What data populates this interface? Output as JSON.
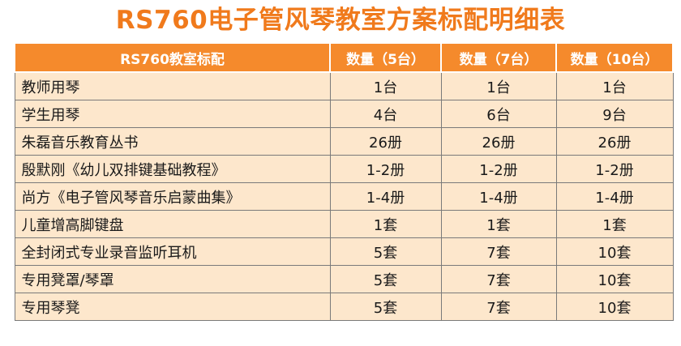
{
  "title": "RS760电子管风琴教室方案标配明细表",
  "colors": {
    "title": "#f07a1c",
    "header_bg": "#f58a2c",
    "row_bg": "#fde7cc",
    "border": "#7a7a7a"
  },
  "table": {
    "headers": [
      "RS760教室标配",
      "数量（5台）",
      "数量（7台）",
      "数量（10台）"
    ],
    "rows": [
      [
        "教师用琴",
        "1台",
        "1台",
        "1台"
      ],
      [
        "学生用琴",
        "4台",
        "6台",
        "9台"
      ],
      [
        "朱磊音乐教育丛书",
        "26册",
        "26册",
        "26册"
      ],
      [
        "殷默刚《幼儿双排键基础教程》",
        "1-2册",
        "1-2册",
        "1-2册"
      ],
      [
        "尚方《电子管风琴音乐启蒙曲集》",
        "1-4册",
        "1-4册",
        "1-4册"
      ],
      [
        "儿童增高脚键盘",
        "1套",
        "1套",
        "1套"
      ],
      [
        "全封闭式专业录音监听耳机",
        "5套",
        "7套",
        "10套"
      ],
      [
        "专用凳罩/琴罩",
        "5套",
        "7套",
        "10套"
      ],
      [
        "专用琴凳",
        "5套",
        "7套",
        "10套"
      ]
    ]
  }
}
